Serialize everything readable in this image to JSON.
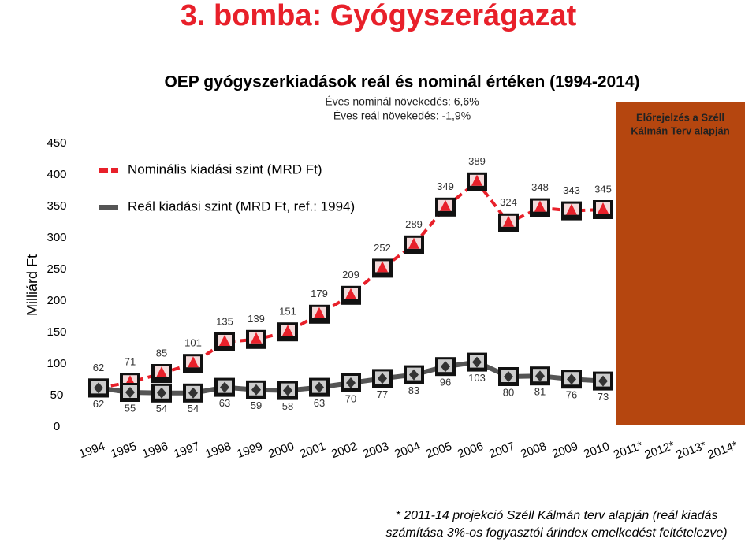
{
  "header": {
    "title": "3. bomba: Gyógyszerágazat"
  },
  "chart_data": {
    "type": "line",
    "title": "OEP gyógyszerkiadások reál és nominál értéken (1994-2014)",
    "subtitle": [
      "Éves nominál növekedés: 6,6%",
      "Éves reál növekedés: -1,9%"
    ],
    "annotation": [
      "Előrejelzés a Széll",
      "Kálmán Terv alapján"
    ],
    "y_label": "Milliárd Ft",
    "categories": [
      "1994",
      "1995",
      "1996",
      "1997",
      "1998",
      "1999",
      "2000",
      "2001",
      "2002",
      "2003",
      "2004",
      "2005",
      "2006",
      "2007",
      "2008",
      "2009",
      "2010",
      "2011*",
      "2012*",
      "2013*",
      "2014*"
    ],
    "series": [
      {
        "name": "Nominális kiadási szint (MRD Ft)",
        "color": "#e8202a",
        "values": [
          62,
          71,
          85,
          101,
          135,
          139,
          151,
          179,
          209,
          252,
          289,
          349,
          389,
          324,
          348,
          343,
          345,
          null,
          null,
          null,
          null
        ]
      },
      {
        "name": "Reál kiadási szint (MRD Ft, ref.: 1994)",
        "color": "#555555",
        "values": [
          62,
          55,
          54,
          54,
          63,
          59,
          58,
          63,
          70,
          77,
          83,
          96,
          103,
          80,
          81,
          76,
          73,
          null,
          null,
          null,
          null
        ]
      }
    ],
    "ylim": [
      0,
      450
    ],
    "yticks": [
      0,
      50,
      100,
      150,
      200,
      250,
      300,
      350,
      400,
      450
    ],
    "grid": false,
    "legend": "top-left",
    "annotation_color": "#b5460f"
  },
  "footnote": [
    "* 2011-14 projekció Széll Kálmán terv alapján (reál kiadás",
    "számítása 3%-os fogyasztói árindex emelkedést feltételezve)"
  ]
}
